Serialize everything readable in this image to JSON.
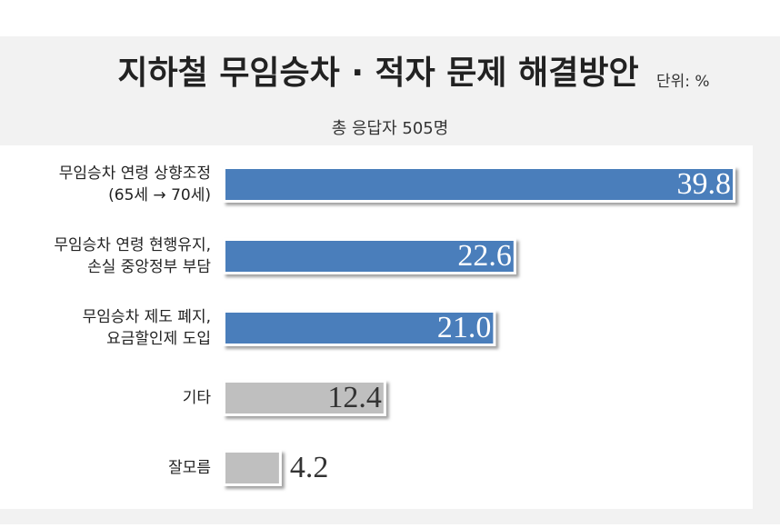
{
  "chart_data": {
    "type": "bar",
    "orientation": "horizontal",
    "title": "지하철 무임승차 · 적자 문제 해결방안",
    "unit": "단위: %",
    "subtitle": "총 응답자 505명",
    "categories": [
      [
        "무임승차 연령 상향조정",
        "(65세 → 70세)"
      ],
      [
        "무임승차 연령 현행유지,",
        "손실 중앙정부 부담"
      ],
      [
        "무임승차 제도 폐지,",
        "요금할인제 도입"
      ],
      [
        "기타"
      ],
      [
        "잘모름"
      ]
    ],
    "values": [
      39.8,
      22.6,
      21.0,
      12.4,
      4.2
    ],
    "value_labels": [
      "39.8",
      "22.6",
      "21.0",
      "12.4",
      "4.2"
    ],
    "colors": [
      "#4a7ebb",
      "#4a7ebb",
      "#4a7ebb",
      "#bfbfbf",
      "#bfbfbf"
    ]
  }
}
